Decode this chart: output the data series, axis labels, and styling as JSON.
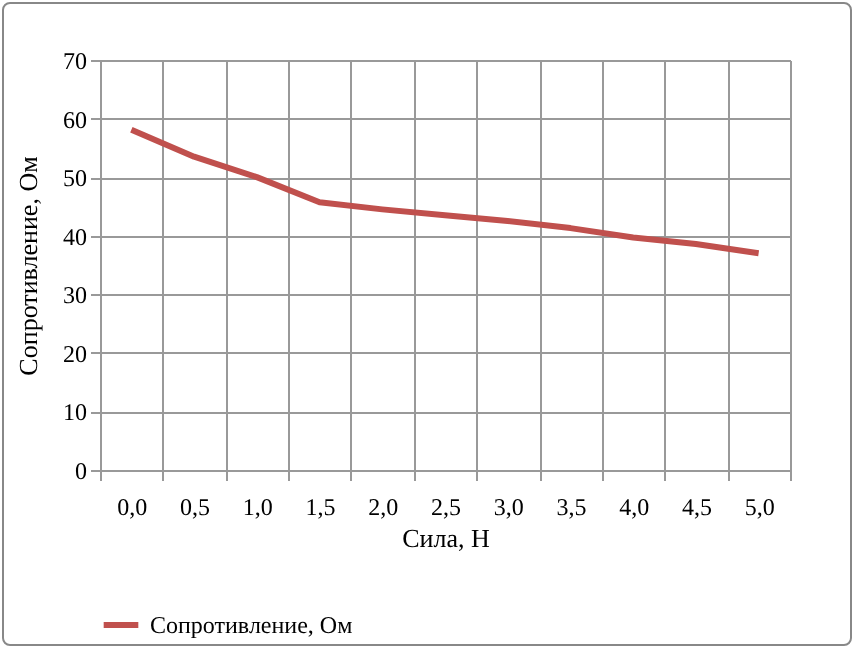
{
  "chart_data": {
    "type": "line",
    "xlabel": "Сила, Н",
    "ylabel": "Сопротивление, Ом",
    "categories": [
      "0,0",
      "0,5",
      "1,0",
      "1,5",
      "2,0",
      "2,5",
      "3,0",
      "3,5",
      "4,0",
      "4,5",
      "5,0"
    ],
    "series": [
      {
        "name": "Сопротивление, Ом",
        "color": "#c0504d",
        "values": [
          58.1,
          53.5,
          50,
          45.7,
          44.5,
          43.5,
          42.5,
          41.3,
          39.7,
          38.6,
          37
        ]
      }
    ],
    "ylim": [
      0,
      70
    ],
    "yticks": [
      0,
      10,
      20,
      30,
      40,
      50,
      60,
      70
    ],
    "grid": true,
    "legend": "bottom",
    "marker": "none",
    "line_style": "solid"
  }
}
